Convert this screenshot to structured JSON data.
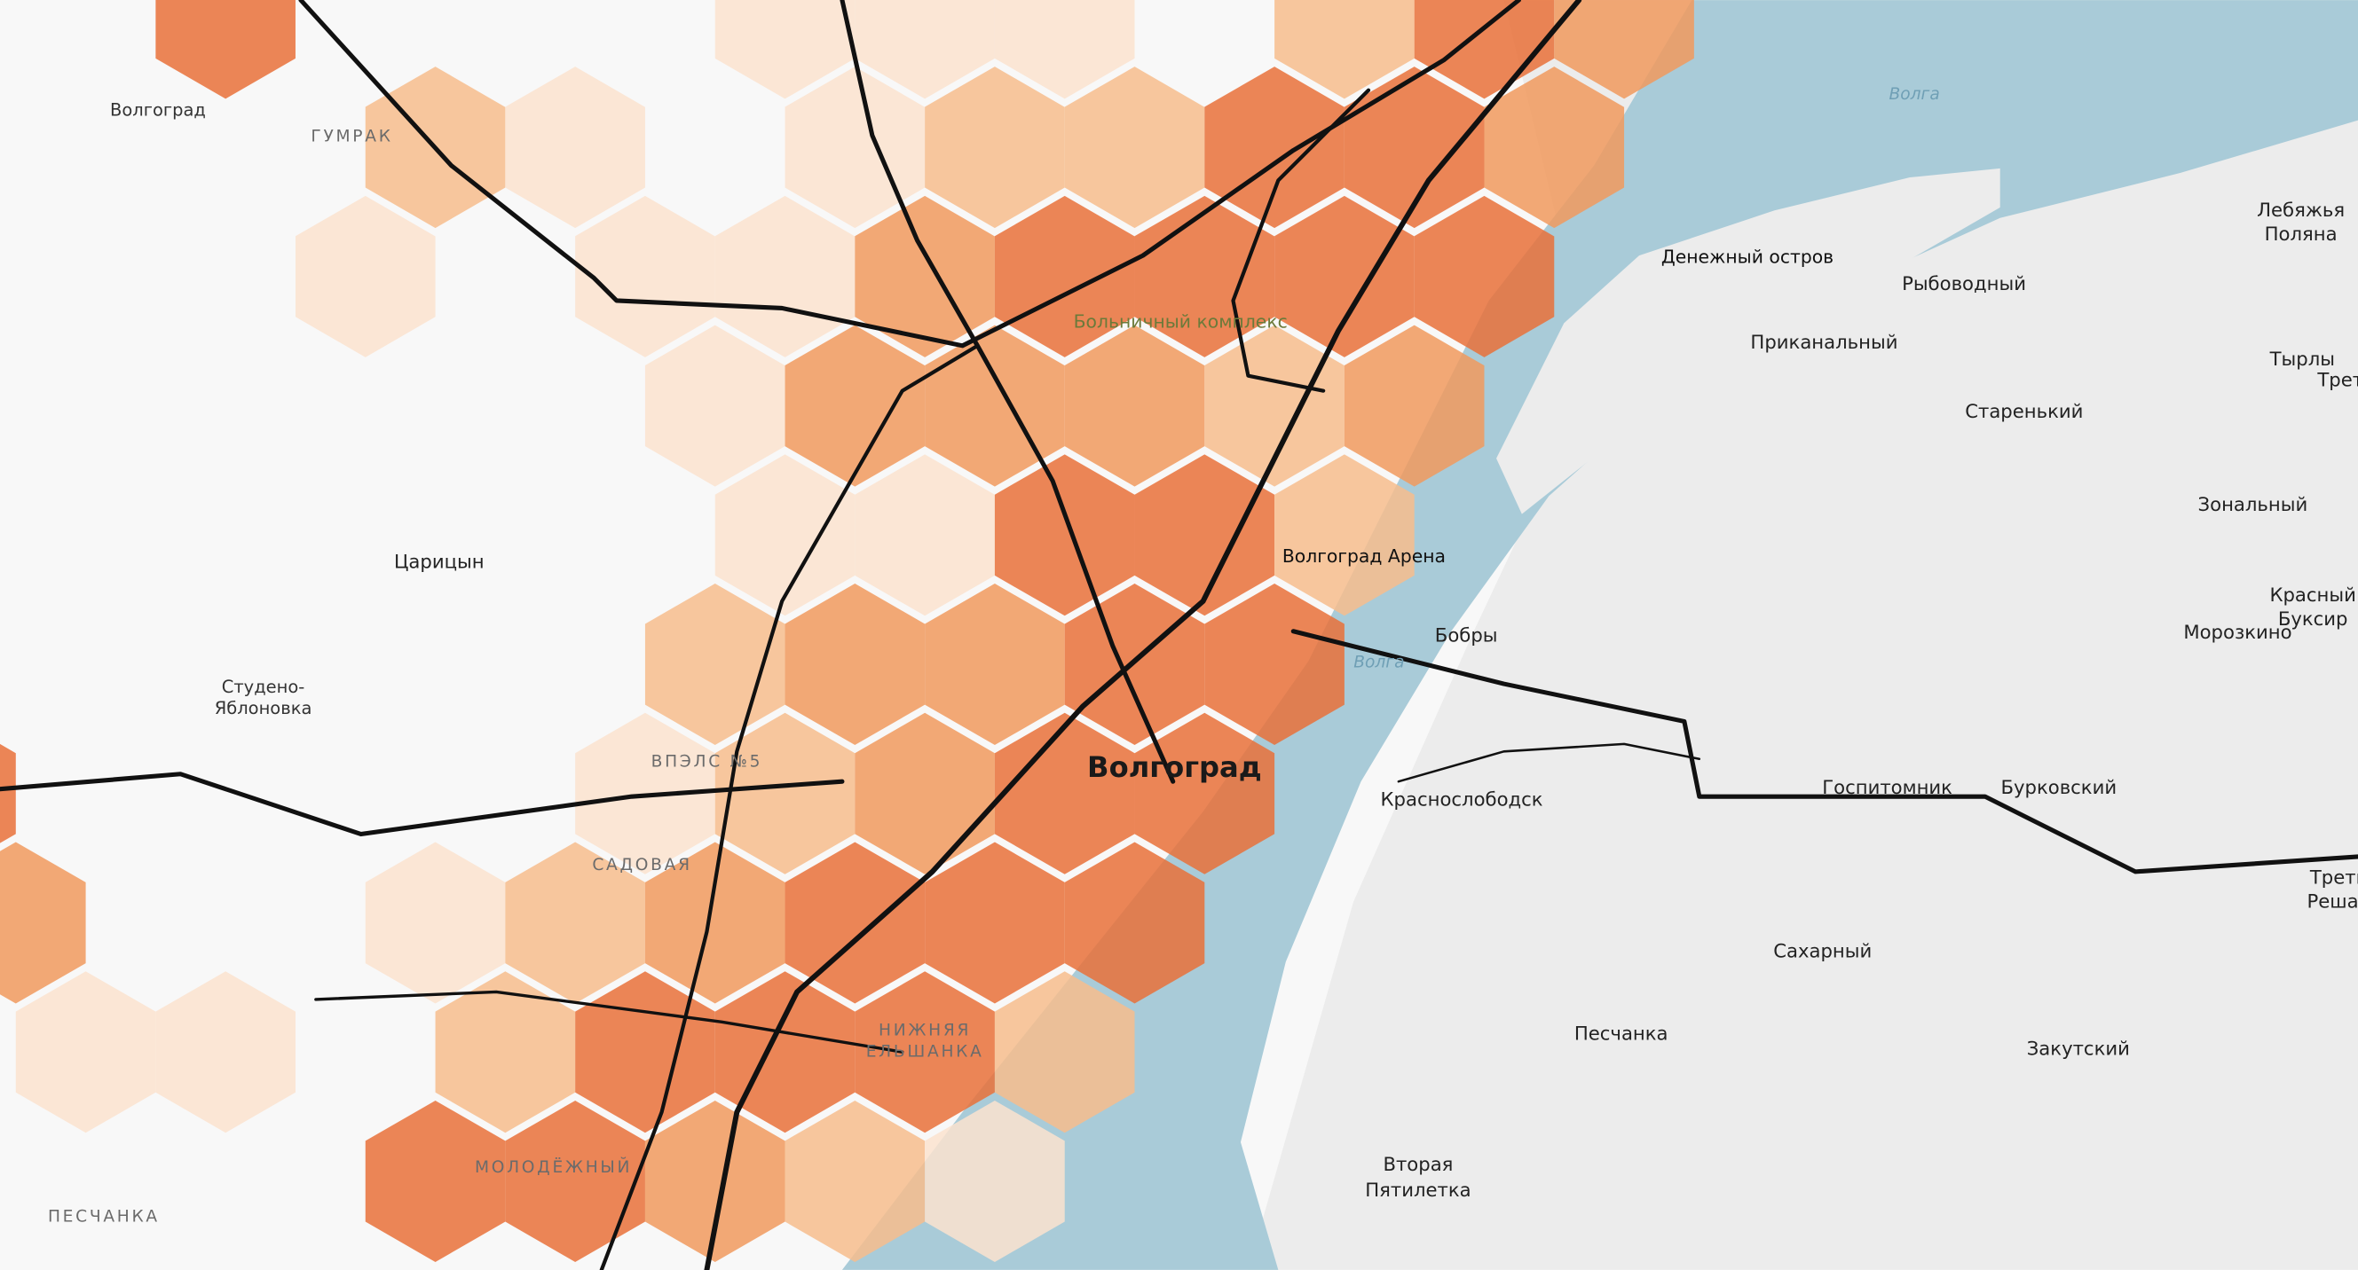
{
  "labels": {
    "airport": "Волгоград",
    "gumrak": "ГУМРАК",
    "volga_north": "Волга",
    "denezhny": "Денежный остров",
    "lebyazhya": [
      "Лебяжья",
      "Поляна"
    ],
    "rybovodny": "Рыбоводный",
    "prikanalny": "Приканальный",
    "tyrly": "Тырлы",
    "tretya_top": "Треть",
    "staren": "Старенький",
    "zonalny": "Зональный",
    "hospital": "Больничный комплекс",
    "arena": "Волгоград Арена",
    "tsaritsyn": "Царицын",
    "bobry": "Бобры",
    "volga_mid": "Волга",
    "krasny_buksir": [
      "Красный",
      "Буксир"
    ],
    "morozkino": "Морозкино",
    "studeno": [
      "Студено-",
      "Яблоновка"
    ],
    "vpels": "ВПЭЛС №5",
    "city": "Волгоград",
    "krasnoslobodsk": "Краснослободск",
    "gospitomnik": "Госпитомник",
    "burkovsky": "Бурковский",
    "tretya_reshak": [
      "Треть",
      "Решак"
    ],
    "sadovaya": "САДОВАЯ",
    "sakharny": "Сахарный",
    "peschanka_east": "Песчанка",
    "zakutsky": "Закутский",
    "elshanka": [
      "НИЖНЯЯ",
      "ЕЛЬШАНКА"
    ],
    "molodezhny": "МОЛОДЁЖНЫЙ",
    "vtoraya": [
      "Вторая",
      "Пятилетка"
    ],
    "peschanka_west": "ПЕСЧАНКА"
  }
}
